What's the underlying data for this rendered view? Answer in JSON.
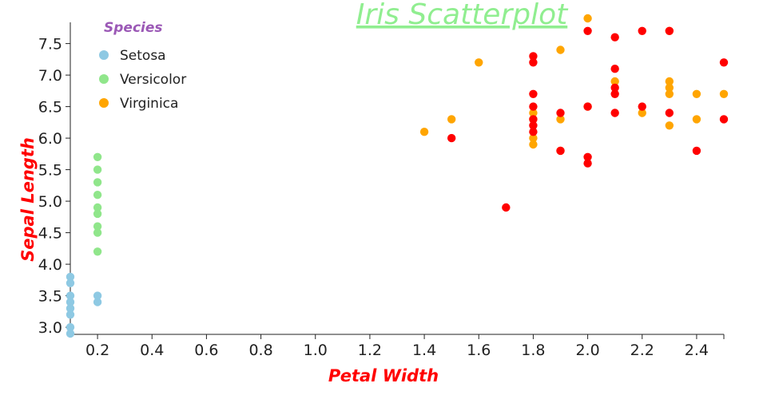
{
  "chart_data": {
    "type": "scatter",
    "title": "Iris Scatterplot",
    "xlabel": "Petal Width",
    "ylabel": "Sepal Length",
    "xlim": [
      0.1,
      2.5
    ],
    "ylim": [
      2.9,
      7.9
    ],
    "x_ticks": [
      "0.2",
      "0.4",
      "0.6",
      "0.8",
      "1.0",
      "1.2",
      "1.4",
      "1.6",
      "1.8",
      "2.0",
      "2.2",
      "2.4"
    ],
    "y_ticks": [
      "3.0",
      "3.5",
      "4.0",
      "4.5",
      "5.0",
      "5.5",
      "6.0",
      "6.5",
      "7.0",
      "7.5"
    ],
    "legend_title": "Species",
    "legend_position": "top-left",
    "series": [
      {
        "name": "Setosa",
        "color": "#8ec9e3",
        "points": [
          [
            0.1,
            3.8
          ],
          [
            0.1,
            3.7
          ],
          [
            0.1,
            3.5
          ],
          [
            0.1,
            3.4
          ],
          [
            0.1,
            3.3
          ],
          [
            0.1,
            3.2
          ],
          [
            0.1,
            3.0
          ],
          [
            0.1,
            2.9
          ],
          [
            0.2,
            3.5
          ],
          [
            0.2,
            3.4
          ]
        ]
      },
      {
        "name": "Versicolor",
        "color": "#90e68b",
        "points": [
          [
            0.2,
            5.7
          ],
          [
            0.2,
            5.5
          ],
          [
            0.2,
            5.3
          ],
          [
            0.2,
            5.1
          ],
          [
            0.2,
            4.9
          ],
          [
            0.2,
            4.8
          ],
          [
            0.2,
            4.6
          ],
          [
            0.2,
            4.5
          ],
          [
            0.2,
            4.2
          ]
        ]
      },
      {
        "name": "Virginica",
        "color": "#ffa500",
        "points": [
          [
            1.4,
            6.1
          ],
          [
            1.5,
            6.3
          ],
          [
            1.6,
            7.2
          ],
          [
            1.8,
            6.4
          ],
          [
            1.8,
            6.3
          ],
          [
            1.8,
            6.0
          ],
          [
            1.8,
            5.9
          ],
          [
            1.9,
            7.4
          ],
          [
            1.9,
            6.3
          ],
          [
            1.9,
            5.8
          ],
          [
            2.0,
            7.9
          ],
          [
            2.0,
            6.5
          ],
          [
            2.1,
            6.9
          ],
          [
            2.2,
            6.4
          ],
          [
            2.3,
            7.7
          ],
          [
            2.3,
            6.9
          ],
          [
            2.3,
            6.8
          ],
          [
            2.3,
            6.7
          ],
          [
            2.3,
            6.2
          ],
          [
            2.4,
            6.7
          ],
          [
            2.4,
            6.3
          ],
          [
            2.5,
            6.7
          ]
        ]
      },
      {
        "name": "",
        "color": "#ff0000",
        "points": [
          [
            1.5,
            6.0
          ],
          [
            1.7,
            4.9
          ],
          [
            1.8,
            7.3
          ],
          [
            1.8,
            7.2
          ],
          [
            1.8,
            6.7
          ],
          [
            1.8,
            6.5
          ],
          [
            1.8,
            6.3
          ],
          [
            1.8,
            6.2
          ],
          [
            1.8,
            6.1
          ],
          [
            1.9,
            6.4
          ],
          [
            1.9,
            5.8
          ],
          [
            2.0,
            7.7
          ],
          [
            2.0,
            6.5
          ],
          [
            2.0,
            5.7
          ],
          [
            2.0,
            5.6
          ],
          [
            2.1,
            7.6
          ],
          [
            2.1,
            7.1
          ],
          [
            2.1,
            6.8
          ],
          [
            2.1,
            6.7
          ],
          [
            2.1,
            6.4
          ],
          [
            2.2,
            7.7
          ],
          [
            2.2,
            6.5
          ],
          [
            2.3,
            7.7
          ],
          [
            2.3,
            6.4
          ],
          [
            2.4,
            5.8
          ],
          [
            2.5,
            7.2
          ],
          [
            2.5,
            6.3
          ]
        ]
      }
    ],
    "colors": {
      "title": "#90ee90",
      "axis_title": "#ff0000",
      "legend_title": "#9b59b6"
    },
    "grid": false
  }
}
